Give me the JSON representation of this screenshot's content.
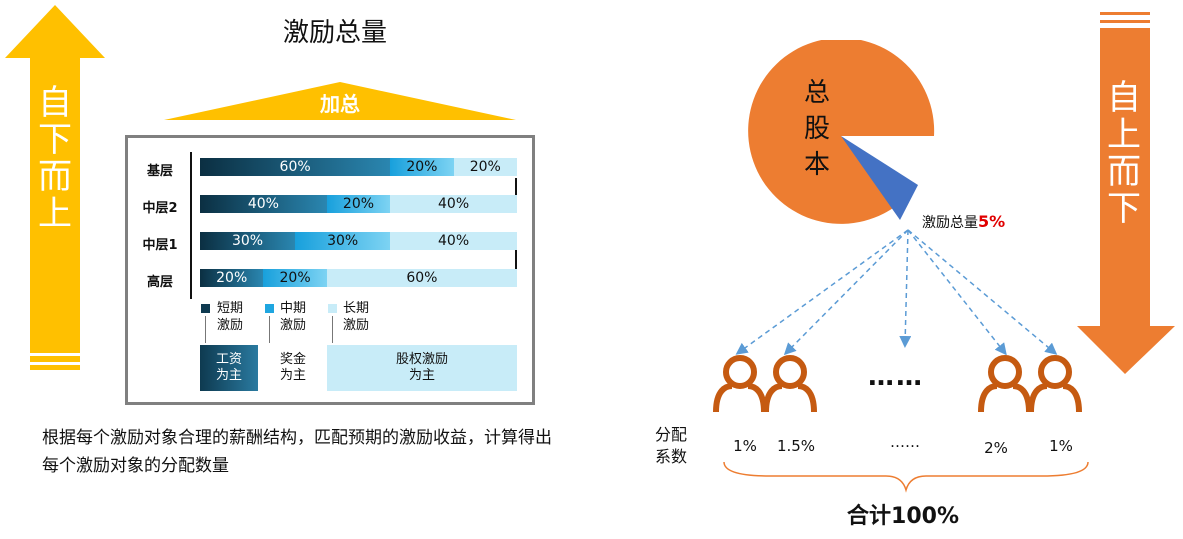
{
  "left": {
    "title": "激励总量",
    "sum_label": "加总",
    "arrow_text": "自下而上",
    "rows": [
      {
        "label": "基层",
        "segments": [
          60,
          20,
          20
        ],
        "texts": [
          "60%",
          "20%",
          "20%"
        ]
      },
      {
        "label": "中层2",
        "segments": [
          40,
          20,
          40
        ],
        "texts": [
          "40%",
          "20%",
          "40%"
        ]
      },
      {
        "label": "中层1",
        "segments": [
          30,
          30,
          40
        ],
        "texts": [
          "30%",
          "30%",
          "40%"
        ]
      },
      {
        "label": "高层",
        "segments": [
          20,
          20,
          60
        ],
        "texts": [
          "20%",
          "20%",
          "60%"
        ]
      }
    ],
    "legend": [
      {
        "line1": "短期",
        "line2": "激励",
        "color": "#0e3a50"
      },
      {
        "line1": "中期",
        "line2": "激励",
        "color": "#1fa6e0"
      },
      {
        "line1": "长期",
        "line2": "激励",
        "color": "#c8ecf8"
      }
    ],
    "boxes": [
      {
        "line1": "工资",
        "line2": "为主"
      },
      {
        "line1": "奖金",
        "line2": "为主"
      },
      {
        "line1": "股权激励",
        "line2": "为主"
      }
    ],
    "description": "根据每个激励对象合理的薪酬结构，匹配预期的激励收益，计算得出每个激励对象的分配数量"
  },
  "right": {
    "pie_text": "总股本",
    "slice_label": "激励总量",
    "slice_value": "5%",
    "arrow_text": "自上而下",
    "dots_large": "……",
    "coef_label_1": "分配",
    "coef_label_2": "系数",
    "percents": [
      "1%",
      "1.5%",
      "……",
      "2%",
      "1%"
    ],
    "total": "合计100%"
  },
  "colors": {
    "orange": "#ed7d31",
    "yellow": "#ffc000",
    "blue": "#4472c4",
    "person": "#c55a11",
    "red": "#e00000"
  }
}
